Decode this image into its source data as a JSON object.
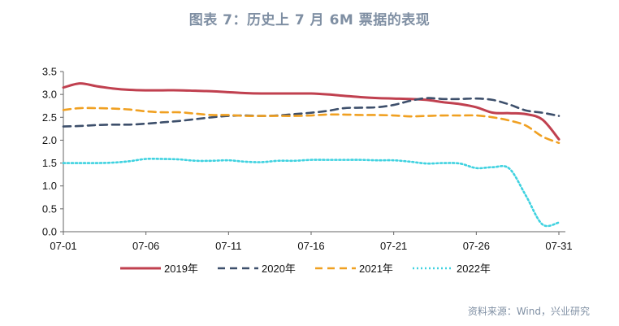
{
  "chart_data": {
    "type": "line",
    "title": "图表 7：历史上 7 月 6M 票据的表现",
    "source": "资料来源：Wind，兴业研究",
    "xlabel": "",
    "ylabel": "",
    "ylim": [
      0,
      3.5
    ],
    "yticks": [
      "0.0",
      "0.5",
      "1.0",
      "1.5",
      "2.0",
      "2.5",
      "3.0",
      "3.5"
    ],
    "x": [
      "07-01",
      "07-02",
      "07-03",
      "07-04",
      "07-05",
      "07-06",
      "07-07",
      "07-08",
      "07-09",
      "07-10",
      "07-11",
      "07-12",
      "07-13",
      "07-14",
      "07-15",
      "07-16",
      "07-17",
      "07-18",
      "07-19",
      "07-20",
      "07-21",
      "07-22",
      "07-23",
      "07-24",
      "07-25",
      "07-26",
      "07-27",
      "07-28",
      "07-29",
      "07-30",
      "07-31"
    ],
    "xticks": [
      "07-01",
      "07-06",
      "07-11",
      "07-16",
      "07-21",
      "07-26",
      "07-31"
    ],
    "grid": false,
    "legend_position": "bottom",
    "series": [
      {
        "name": "2019年",
        "color": "#c0404f",
        "dash": "solid",
        "values": [
          3.15,
          3.24,
          3.18,
          3.13,
          3.1,
          3.09,
          3.09,
          3.09,
          3.08,
          3.07,
          3.05,
          3.03,
          3.02,
          3.02,
          3.02,
          3.02,
          3.0,
          2.97,
          2.94,
          2.92,
          2.91,
          2.9,
          2.88,
          2.83,
          2.79,
          2.72,
          2.6,
          2.59,
          2.57,
          2.45,
          2.02
        ]
      },
      {
        "name": "2020年",
        "color": "#3d4f6b",
        "dash": "dash",
        "values": [
          2.3,
          2.31,
          2.33,
          2.34,
          2.34,
          2.36,
          2.39,
          2.42,
          2.46,
          2.5,
          2.53,
          2.54,
          2.53,
          2.54,
          2.57,
          2.6,
          2.64,
          2.7,
          2.71,
          2.72,
          2.77,
          2.86,
          2.92,
          2.9,
          2.9,
          2.91,
          2.88,
          2.78,
          2.65,
          2.6,
          2.53
        ]
      },
      {
        "name": "2021年",
        "color": "#f0a021",
        "dash": "dash",
        "values": [
          2.66,
          2.7,
          2.7,
          2.69,
          2.67,
          2.63,
          2.61,
          2.61,
          2.58,
          2.55,
          2.55,
          2.53,
          2.53,
          2.53,
          2.53,
          2.54,
          2.56,
          2.56,
          2.55,
          2.55,
          2.54,
          2.52,
          2.53,
          2.54,
          2.54,
          2.54,
          2.5,
          2.43,
          2.32,
          2.08,
          1.94
        ]
      },
      {
        "name": "2022年",
        "color": "#3fd2e0",
        "dash": "dot",
        "values": [
          1.5,
          1.5,
          1.5,
          1.51,
          1.54,
          1.59,
          1.59,
          1.58,
          1.55,
          1.55,
          1.56,
          1.53,
          1.52,
          1.55,
          1.55,
          1.57,
          1.57,
          1.57,
          1.57,
          1.56,
          1.56,
          1.53,
          1.49,
          1.5,
          1.49,
          1.39,
          1.41,
          1.38,
          0.79,
          0.16,
          0.2
        ]
      }
    ]
  }
}
